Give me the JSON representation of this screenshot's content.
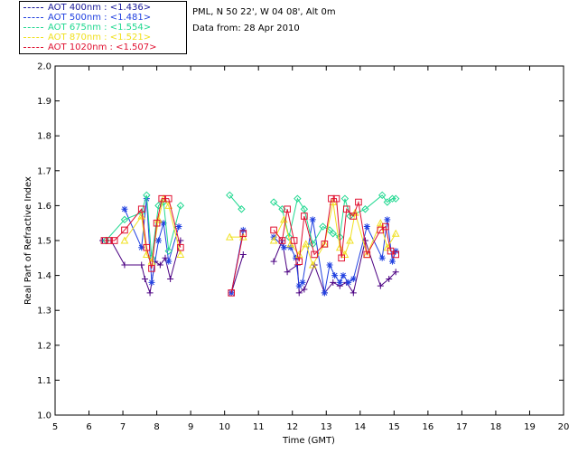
{
  "header": {
    "location": "PML, N 50 22', W 04 08', Alt 0m",
    "data_from": "Data from: 28 Apr 2010"
  },
  "legend": [
    {
      "label": "AOT  400nm : <1.436>",
      "color": "#1a1a9a"
    },
    {
      "label": "AOT  500nm : <1.481>",
      "color": "#2040e0"
    },
    {
      "label": "AOT  675nm : <1.554>",
      "color": "#20d890"
    },
    {
      "label": "AOT  870nm : <1.521>",
      "color": "#f0e020"
    },
    {
      "label": "AOT 1020nm : <1.507>",
      "color": "#e01030"
    }
  ],
  "chart_data": {
    "type": "scatter",
    "title": "",
    "xlabel": "Time (GMT)",
    "ylabel": "Real Part of Refractive Index",
    "xlim": [
      5,
      20
    ],
    "ylim": [
      1.0,
      2.0
    ],
    "xticks": [
      5,
      6,
      7,
      8,
      9,
      10,
      11,
      12,
      13,
      14,
      15,
      16,
      17,
      18,
      19,
      20
    ],
    "yticks": [
      1.0,
      1.1,
      1.2,
      1.3,
      1.4,
      1.5,
      1.6,
      1.7,
      1.8,
      1.9,
      2.0
    ],
    "series": [
      {
        "name": "AOT  400nm : <1.436>",
        "color": "#4b0082",
        "marker": "plus",
        "points": [
          [
            6.4,
            1.5
          ],
          [
            6.55,
            1.5
          ],
          [
            6.65,
            1.5
          ],
          [
            7.05,
            1.43
          ],
          [
            7.55,
            1.43
          ],
          [
            7.65,
            1.39
          ],
          [
            7.8,
            1.35
          ],
          [
            7.95,
            1.44
          ],
          [
            8.1,
            1.43
          ],
          [
            8.25,
            1.45
          ],
          [
            8.4,
            1.39
          ],
          [
            8.7,
            1.5
          ],
          [
            10.2,
            1.35
          ],
          [
            10.55,
            1.46
          ],
          [
            11.45,
            1.44
          ],
          [
            11.7,
            1.5
          ],
          [
            11.85,
            1.41
          ],
          [
            12.15,
            1.43
          ],
          [
            12.2,
            1.35
          ],
          [
            12.35,
            1.36
          ],
          [
            12.65,
            1.43
          ],
          [
            12.95,
            1.35
          ],
          [
            13.2,
            1.38
          ],
          [
            13.4,
            1.37
          ],
          [
            13.6,
            1.38
          ],
          [
            13.8,
            1.35
          ],
          [
            14.15,
            1.5
          ],
          [
            14.6,
            1.37
          ],
          [
            14.85,
            1.39
          ],
          [
            15.05,
            1.41
          ]
        ]
      },
      {
        "name": "AOT  500nm : <1.481>",
        "color": "#2040e0",
        "marker": "asterisk",
        "points": [
          [
            7.05,
            1.59
          ],
          [
            7.55,
            1.48
          ],
          [
            7.7,
            1.62
          ],
          [
            7.85,
            1.38
          ],
          [
            8.05,
            1.5
          ],
          [
            8.2,
            1.55
          ],
          [
            8.35,
            1.44
          ],
          [
            8.65,
            1.54
          ],
          [
            10.2,
            1.35
          ],
          [
            10.55,
            1.53
          ],
          [
            11.45,
            1.51
          ],
          [
            11.75,
            1.48
          ],
          [
            11.95,
            1.48
          ],
          [
            12.1,
            1.45
          ],
          [
            12.2,
            1.37
          ],
          [
            12.3,
            1.38
          ],
          [
            12.6,
            1.56
          ],
          [
            12.95,
            1.35
          ],
          [
            13.1,
            1.43
          ],
          [
            13.25,
            1.4
          ],
          [
            13.4,
            1.38
          ],
          [
            13.5,
            1.4
          ],
          [
            13.65,
            1.38
          ],
          [
            13.8,
            1.39
          ],
          [
            14.2,
            1.54
          ],
          [
            14.65,
            1.45
          ],
          [
            14.8,
            1.56
          ],
          [
            14.95,
            1.44
          ],
          [
            15.05,
            1.47
          ]
        ]
      },
      {
        "name": "AOT  675nm : <1.554>",
        "color": "#20d890",
        "marker": "diamond",
        "points": [
          [
            6.5,
            1.5
          ],
          [
            7.05,
            1.56
          ],
          [
            7.55,
            1.58
          ],
          [
            7.7,
            1.63
          ],
          [
            7.85,
            1.45
          ],
          [
            8.05,
            1.6
          ],
          [
            8.2,
            1.61
          ],
          [
            8.35,
            1.47
          ],
          [
            8.7,
            1.6
          ],
          [
            10.15,
            1.63
          ],
          [
            10.5,
            1.59
          ],
          [
            11.45,
            1.61
          ],
          [
            11.7,
            1.59
          ],
          [
            11.9,
            1.51
          ],
          [
            12.15,
            1.62
          ],
          [
            12.35,
            1.59
          ],
          [
            12.6,
            1.49
          ],
          [
            12.9,
            1.54
          ],
          [
            13.1,
            1.53
          ],
          [
            13.2,
            1.52
          ],
          [
            13.4,
            1.51
          ],
          [
            13.55,
            1.62
          ],
          [
            13.7,
            1.57
          ],
          [
            14.15,
            1.59
          ],
          [
            14.65,
            1.63
          ],
          [
            14.8,
            1.61
          ],
          [
            14.95,
            1.62
          ],
          [
            15.05,
            1.62
          ]
        ]
      },
      {
        "name": "AOT  870nm : <1.521>",
        "color": "#f0e020",
        "marker": "triangle",
        "points": [
          [
            7.05,
            1.5
          ],
          [
            7.55,
            1.57
          ],
          [
            7.7,
            1.46
          ],
          [
            7.85,
            1.44
          ],
          [
            8.05,
            1.56
          ],
          [
            8.2,
            1.62
          ],
          [
            8.35,
            1.6
          ],
          [
            8.7,
            1.46
          ],
          [
            10.15,
            1.51
          ],
          [
            10.55,
            1.51
          ],
          [
            11.45,
            1.5
          ],
          [
            11.75,
            1.56
          ],
          [
            11.95,
            1.49
          ],
          [
            12.2,
            1.46
          ],
          [
            12.4,
            1.49
          ],
          [
            12.6,
            1.43
          ],
          [
            12.95,
            1.49
          ],
          [
            13.2,
            1.61
          ],
          [
            13.4,
            1.48
          ],
          [
            13.55,
            1.46
          ],
          [
            13.7,
            1.5
          ],
          [
            13.85,
            1.58
          ],
          [
            14.2,
            1.46
          ],
          [
            14.6,
            1.55
          ],
          [
            14.8,
            1.48
          ],
          [
            15.05,
            1.52
          ]
        ]
      },
      {
        "name": "AOT 1020nm : <1.507>",
        "color": "#e01030",
        "marker": "square",
        "points": [
          [
            6.45,
            1.5
          ],
          [
            6.6,
            1.5
          ],
          [
            6.75,
            1.5
          ],
          [
            7.05,
            1.53
          ],
          [
            7.55,
            1.59
          ],
          [
            7.7,
            1.48
          ],
          [
            7.85,
            1.42
          ],
          [
            8.0,
            1.55
          ],
          [
            8.15,
            1.62
          ],
          [
            8.35,
            1.62
          ],
          [
            8.7,
            1.48
          ],
          [
            10.2,
            1.35
          ],
          [
            10.55,
            1.52
          ],
          [
            11.45,
            1.53
          ],
          [
            11.7,
            1.5
          ],
          [
            11.85,
            1.59
          ],
          [
            12.05,
            1.5
          ],
          [
            12.2,
            1.44
          ],
          [
            12.35,
            1.57
          ],
          [
            12.65,
            1.46
          ],
          [
            12.95,
            1.49
          ],
          [
            13.15,
            1.62
          ],
          [
            13.3,
            1.62
          ],
          [
            13.45,
            1.45
          ],
          [
            13.6,
            1.59
          ],
          [
            13.8,
            1.57
          ],
          [
            13.95,
            1.61
          ],
          [
            14.2,
            1.46
          ],
          [
            14.6,
            1.53
          ],
          [
            14.75,
            1.54
          ],
          [
            14.9,
            1.47
          ],
          [
            15.05,
            1.46
          ]
        ]
      }
    ]
  }
}
